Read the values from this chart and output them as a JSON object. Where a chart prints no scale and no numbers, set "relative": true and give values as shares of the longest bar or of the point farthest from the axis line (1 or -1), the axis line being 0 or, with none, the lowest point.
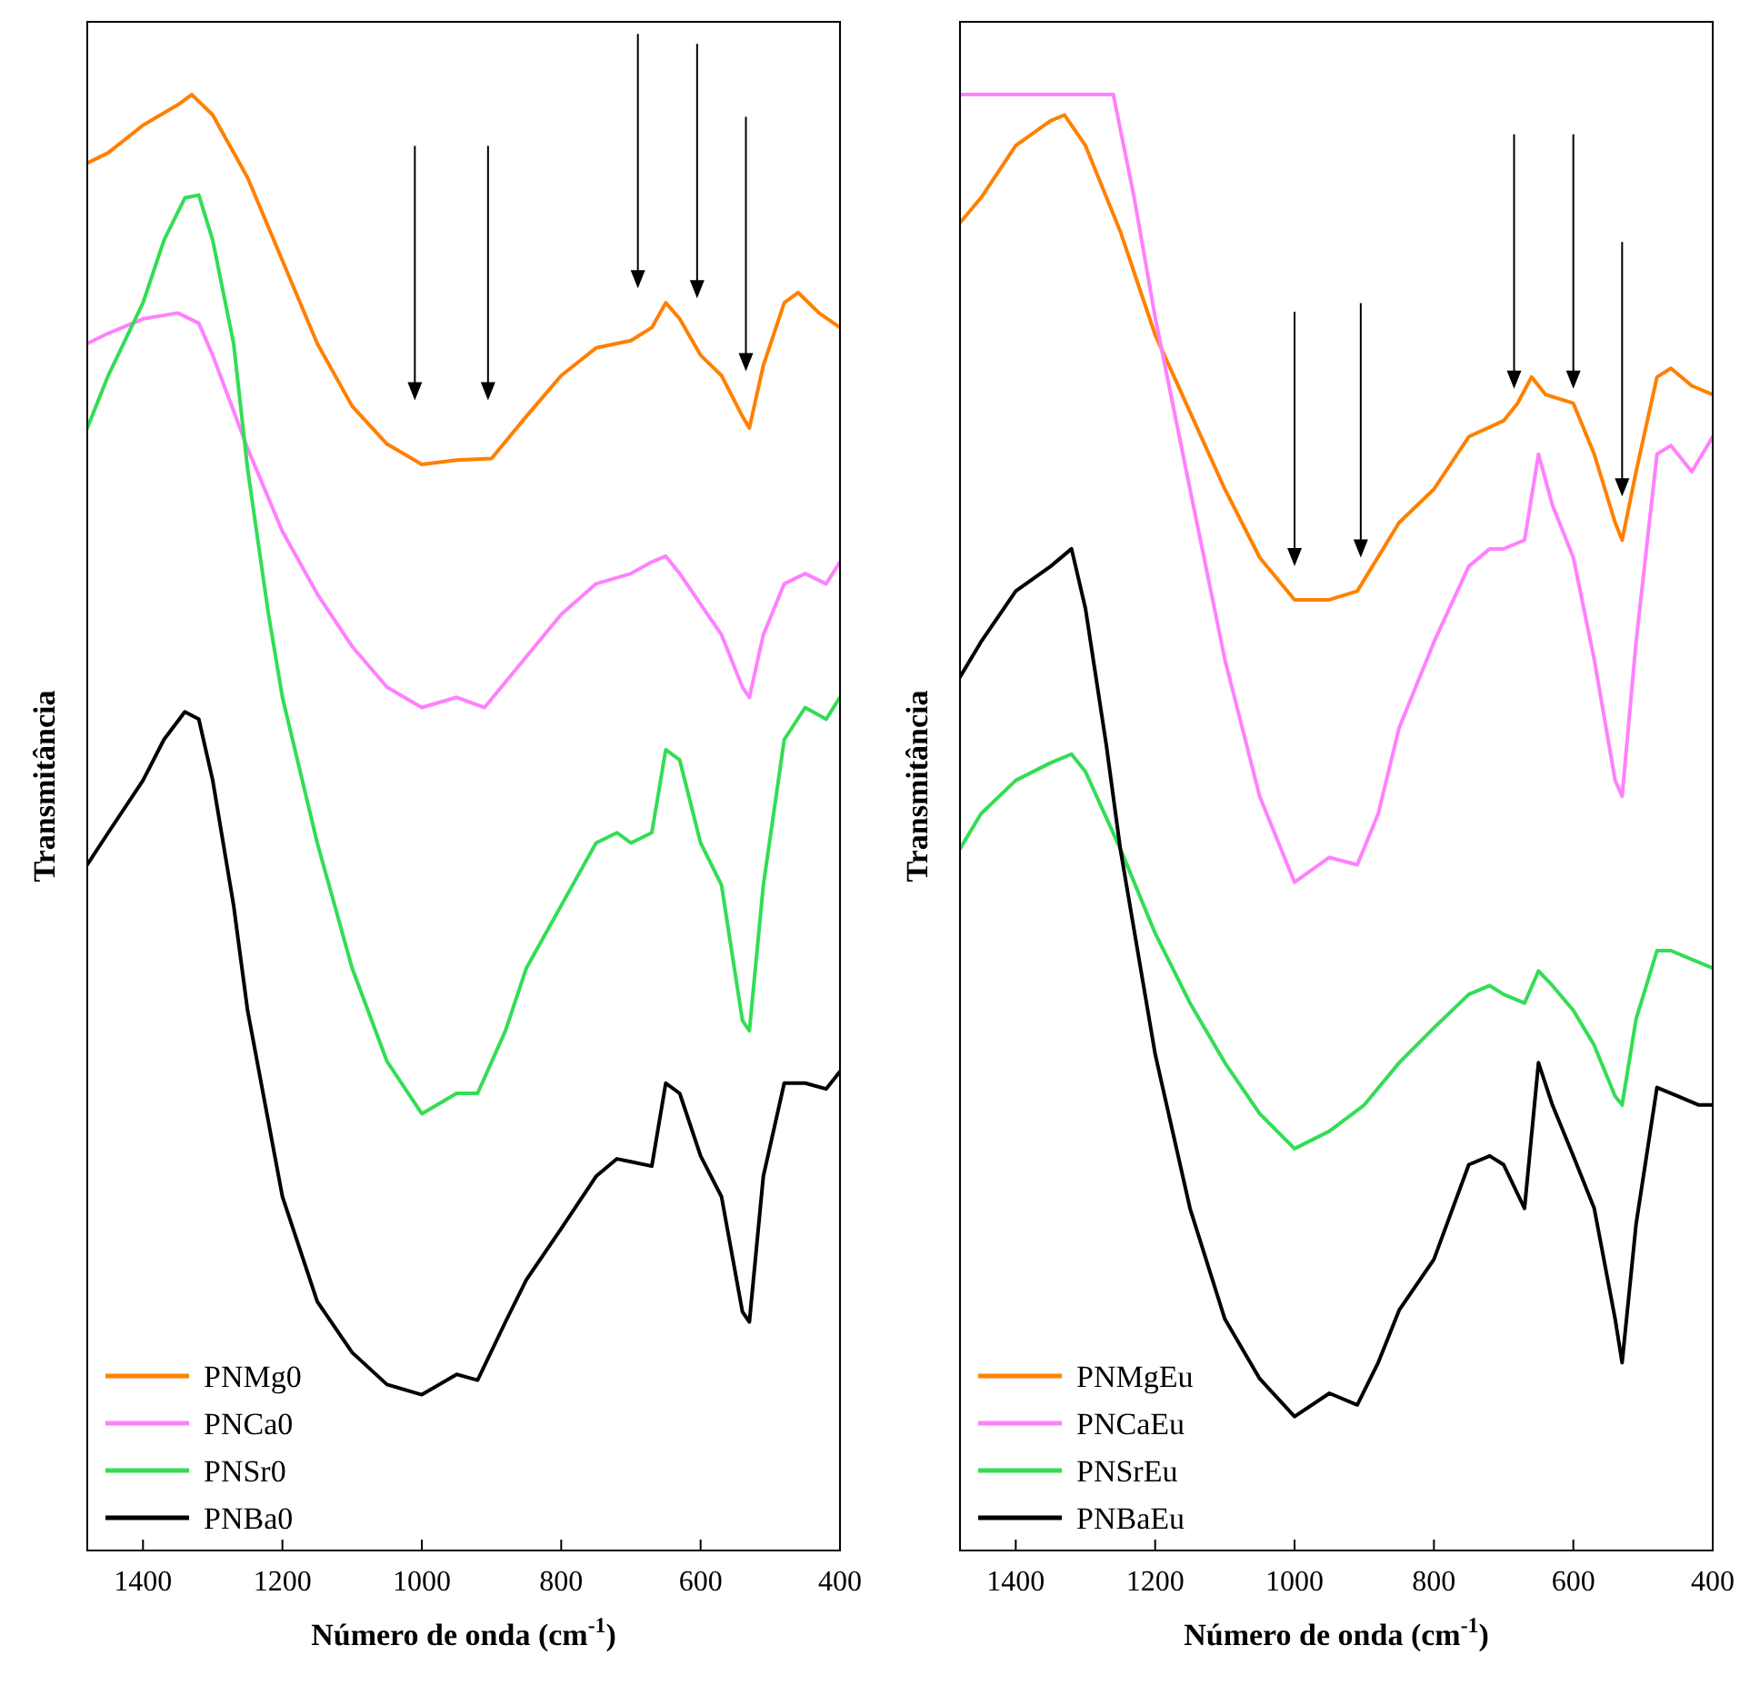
{
  "chart_data": [
    {
      "type": "line",
      "relative": true,
      "xlabel": "Número de onda (cm$^{-1}$)",
      "ylabel": "Transmitância",
      "xlim": [
        1480,
        400
      ],
      "xticks": [
        1400,
        1200,
        1000,
        800,
        600,
        400
      ],
      "legend": "bottom left",
      "tick_labels": "x",
      "series": [
        {
          "name": "PNMg0",
          "color": "#ff8000",
          "x": [
            1480,
            1450,
            1400,
            1350,
            1330,
            1300,
            1250,
            1200,
            1150,
            1100,
            1050,
            1000,
            950,
            900,
            850,
            800,
            750,
            700,
            670,
            650,
            630,
            600,
            570,
            540,
            530,
            510,
            480,
            460,
            430,
            400
          ],
          "values": [
            0.953,
            0.96,
            0.979,
            0.993,
            1,
            0.986,
            0.943,
            0.886,
            0.829,
            0.786,
            0.76,
            0.746,
            0.749,
            0.75,
            0.779,
            0.807,
            0.826,
            0.831,
            0.84,
            0.857,
            0.846,
            0.821,
            0.807,
            0.779,
            0.771,
            0.814,
            0.857,
            0.864,
            0.85,
            0.84
          ]
        },
        {
          "name": "PNCa0",
          "color": "#ff80ff",
          "x": [
            1480,
            1450,
            1400,
            1350,
            1320,
            1300,
            1250,
            1200,
            1150,
            1100,
            1050,
            1000,
            950,
            910,
            850,
            800,
            750,
            700,
            670,
            650,
            630,
            600,
            570,
            540,
            530,
            510,
            480,
            450,
            420,
            400
          ],
          "values": [
            0.829,
            0.836,
            0.846,
            0.85,
            0.843,
            0.821,
            0.757,
            0.7,
            0.657,
            0.621,
            0.593,
            0.579,
            0.586,
            0.579,
            0.614,
            0.643,
            0.664,
            0.671,
            0.679,
            0.683,
            0.671,
            0.65,
            0.629,
            0.593,
            0.586,
            0.629,
            0.664,
            0.671,
            0.664,
            0.679
          ]
        },
        {
          "name": "PNSr0",
          "color": "#33dd55",
          "x": [
            1480,
            1450,
            1400,
            1370,
            1340,
            1320,
            1300,
            1270,
            1250,
            1220,
            1200,
            1150,
            1100,
            1050,
            1000,
            950,
            920,
            880,
            850,
            800,
            750,
            720,
            700,
            670,
            650,
            630,
            600,
            570,
            540,
            530,
            510,
            480,
            450,
            420,
            400
          ],
          "values": [
            0.771,
            0.807,
            0.857,
            0.9,
            0.929,
            0.931,
            0.9,
            0.829,
            0.743,
            0.643,
            0.586,
            0.486,
            0.4,
            0.336,
            0.3,
            0.314,
            0.314,
            0.357,
            0.4,
            0.443,
            0.486,
            0.493,
            0.486,
            0.493,
            0.55,
            0.543,
            0.486,
            0.457,
            0.364,
            0.357,
            0.457,
            0.557,
            0.579,
            0.571,
            0.586
          ]
        },
        {
          "name": "PNBa0",
          "color": "#000000",
          "x": [
            1480,
            1450,
            1400,
            1370,
            1340,
            1320,
            1300,
            1270,
            1250,
            1200,
            1150,
            1100,
            1050,
            1000,
            950,
            920,
            880,
            850,
            800,
            750,
            720,
            700,
            670,
            650,
            630,
            600,
            570,
            540,
            530,
            510,
            480,
            450,
            420,
            400
          ],
          "values": [
            0.471,
            0.493,
            0.529,
            0.557,
            0.576,
            0.571,
            0.529,
            0.443,
            0.371,
            0.243,
            0.171,
            0.136,
            0.114,
            0.107,
            0.121,
            0.117,
            0.157,
            0.186,
            0.221,
            0.257,
            0.269,
            0.267,
            0.264,
            0.321,
            0.314,
            0.271,
            0.243,
            0.164,
            0.157,
            0.257,
            0.321,
            0.321,
            0.317,
            0.329
          ]
        }
      ]
    },
    {
      "type": "line",
      "relative": true,
      "xlabel": "Número de onda (cm$^{-1}$)",
      "ylabel": "Transmitância",
      "xlim": [
        1480,
        400
      ],
      "xticks": [
        1400,
        1200,
        1000,
        800,
        600,
        400
      ],
      "legend": "bottom left",
      "tick_labels": "x",
      "series": [
        {
          "name": "PNMgEu",
          "color": "#ff8000",
          "x": [
            1480,
            1450,
            1400,
            1350,
            1330,
            1300,
            1250,
            1200,
            1150,
            1100,
            1050,
            1000,
            950,
            910,
            850,
            800,
            750,
            700,
            680,
            660,
            640,
            600,
            570,
            540,
            530,
            510,
            480,
            460,
            430,
            400
          ],
          "values": [
            0.912,
            0.929,
            0.965,
            0.982,
            0.986,
            0.965,
            0.906,
            0.835,
            0.782,
            0.729,
            0.682,
            0.653,
            0.653,
            0.659,
            0.706,
            0.729,
            0.765,
            0.776,
            0.788,
            0.806,
            0.794,
            0.788,
            0.753,
            0.706,
            0.694,
            0.741,
            0.806,
            0.812,
            0.8,
            0.794
          ]
        },
        {
          "name": "PNCaEu",
          "color": "#ff80ff",
          "x": [
            1480,
            1300,
            1260,
            1230,
            1200,
            1150,
            1100,
            1050,
            1000,
            950,
            910,
            880,
            850,
            800,
            750,
            720,
            700,
            670,
            650,
            630,
            600,
            570,
            540,
            530,
            510,
            480,
            460,
            430,
            400
          ],
          "values": [
            1,
            1,
            1,
            0.929,
            0.847,
            0.729,
            0.612,
            0.518,
            0.459,
            0.476,
            0.471,
            0.506,
            0.565,
            0.624,
            0.676,
            0.688,
            0.688,
            0.694,
            0.753,
            0.718,
            0.682,
            0.612,
            0.529,
            0.518,
            0.624,
            0.753,
            0.759,
            0.741,
            0.765
          ]
        },
        {
          "name": "PNSrEu",
          "color": "#33dd55",
          "x": [
            1480,
            1450,
            1400,
            1350,
            1320,
            1300,
            1250,
            1200,
            1150,
            1100,
            1050,
            1000,
            950,
            900,
            850,
            800,
            750,
            720,
            700,
            670,
            650,
            630,
            600,
            570,
            540,
            530,
            510,
            480,
            460,
            430,
            400
          ],
          "values": [
            0.482,
            0.506,
            0.529,
            0.541,
            0.547,
            0.535,
            0.482,
            0.424,
            0.376,
            0.335,
            0.3,
            0.276,
            0.288,
            0.306,
            0.335,
            0.359,
            0.382,
            0.388,
            0.382,
            0.376,
            0.398,
            0.388,
            0.371,
            0.347,
            0.312,
            0.306,
            0.365,
            0.412,
            0.412,
            0.406,
            0.4
          ]
        },
        {
          "name": "PNBaEu",
          "color": "#000000",
          "x": [
            1480,
            1450,
            1400,
            1350,
            1320,
            1300,
            1270,
            1250,
            1200,
            1150,
            1100,
            1050,
            1000,
            950,
            910,
            880,
            850,
            800,
            750,
            720,
            700,
            670,
            650,
            630,
            600,
            570,
            540,
            530,
            510,
            480,
            450,
            420,
            400
          ],
          "values": [
            0.6,
            0.624,
            0.659,
            0.676,
            0.688,
            0.647,
            0.553,
            0.482,
            0.341,
            0.235,
            0.159,
            0.118,
            0.092,
            0.108,
            0.1,
            0.129,
            0.165,
            0.2,
            0.265,
            0.271,
            0.265,
            0.235,
            0.335,
            0.306,
            0.271,
            0.235,
            0.159,
            0.129,
            0.224,
            0.318,
            0.312,
            0.306,
            0.306
          ]
        }
      ]
    }
  ]
}
